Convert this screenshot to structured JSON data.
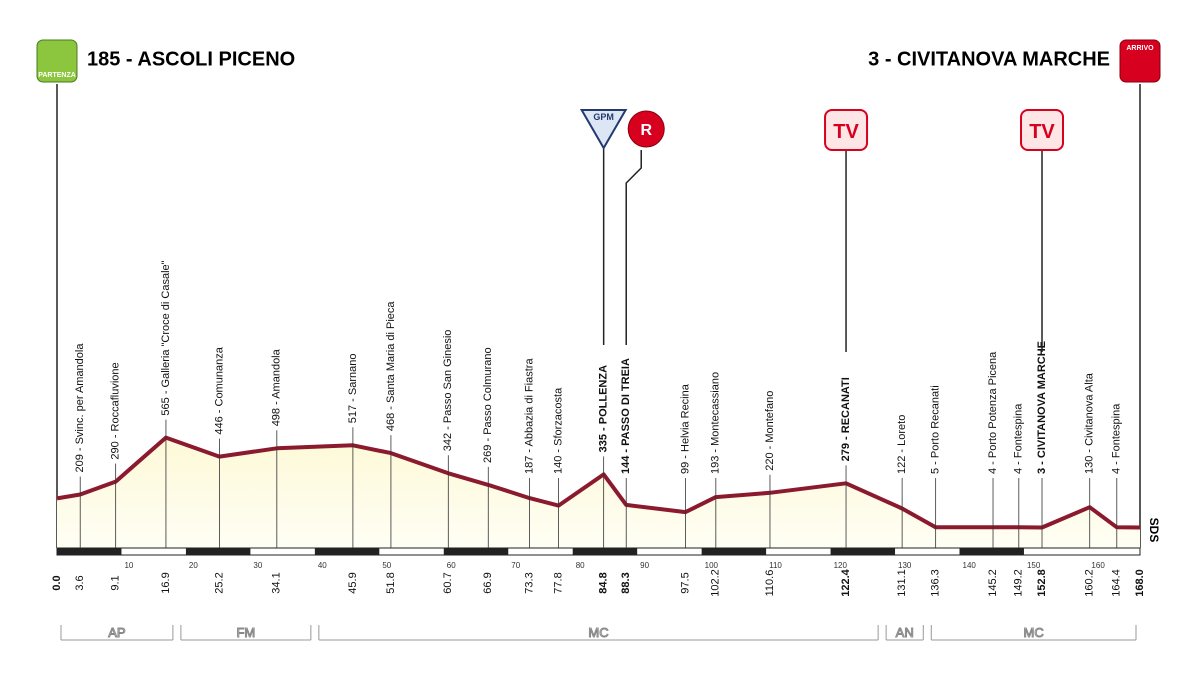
{
  "header": {
    "start": {
      "icon": "PARTENZA",
      "title": "185 - ASCOLI PICENO",
      "km": {
        "value": 0,
        "label": "0.0"
      },
      "altitude": 185
    },
    "finish": {
      "icon": "ARRIVO",
      "title": "3 - CIVITANOVA MARCHE",
      "km": {
        "value": 168,
        "label": "168.0"
      },
      "altitude": 3
    }
  },
  "waypoints": [
    {
      "label": "209 - Svinc. per Amandola",
      "km": {
        "value": 3.6,
        "label": "3.6"
      },
      "altitude": 209,
      "bold": false
    },
    {
      "label": "290 - Roccafluvione",
      "km": {
        "value": 9.1,
        "label": "9.1"
      },
      "altitude": 290,
      "bold": false
    },
    {
      "label": "565 - Galleria \"Croce di Casale\"",
      "km": {
        "value": 16.9,
        "label": "16.9"
      },
      "altitude": 565,
      "bold": false
    },
    {
      "label": "446 - Comunanza",
      "km": {
        "value": 25.2,
        "label": "25.2"
      },
      "altitude": 446,
      "bold": false
    },
    {
      "label": "498 - Amandola",
      "km": {
        "value": 34.1,
        "label": "34.1"
      },
      "altitude": 498,
      "bold": false
    },
    {
      "label": "517 - Sarnano",
      "km": {
        "value": 45.9,
        "label": "45.9"
      },
      "altitude": 517,
      "bold": false
    },
    {
      "label": "468 - Santa Maria di Pieca",
      "km": {
        "value": 51.8,
        "label": "51.8"
      },
      "altitude": 468,
      "bold": false
    },
    {
      "label": "342 - Passo San Ginesio",
      "km": {
        "value": 60.7,
        "label": "60.7"
      },
      "altitude": 342,
      "bold": false
    },
    {
      "label": "269 - Passo Colmurano",
      "km": {
        "value": 66.9,
        "label": "66.9"
      },
      "altitude": 269,
      "bold": false
    },
    {
      "label": "187 - Abbazia di Fiastra",
      "km": {
        "value": 73.3,
        "label": "73.3"
      },
      "altitude": 187,
      "bold": false
    },
    {
      "label": "140 - Sforzacosta",
      "km": {
        "value": 77.8,
        "label": "77.8"
      },
      "altitude": 140,
      "bold": false
    },
    {
      "label": "335 - POLLENZA",
      "km": {
        "value": 84.8,
        "label": "84.8"
      },
      "altitude": 335,
      "bold": true
    },
    {
      "label": "144 - PASSO DI TREIA",
      "km": {
        "value": 88.3,
        "label": "88.3"
      },
      "altitude": 144,
      "bold": true
    },
    {
      "label": "99 - Helvia Recina",
      "km": {
        "value": 97.5,
        "label": "97.5"
      },
      "altitude": 99,
      "bold": false
    },
    {
      "label": "193 - Montecassiano",
      "km": {
        "value": 102.2,
        "label": "102.2"
      },
      "altitude": 193,
      "bold": false
    },
    {
      "label": "220 - Montefano",
      "km": {
        "value": 110.6,
        "label": "110.6"
      },
      "altitude": 220,
      "bold": false
    },
    {
      "label": "279 - RECANATI",
      "km": {
        "value": 122.4,
        "label": "122.4"
      },
      "altitude": 279,
      "bold": true
    },
    {
      "label": "122 - Loreto",
      "km": {
        "value": 131.1,
        "label": "131.1"
      },
      "altitude": 122,
      "bold": false
    },
    {
      "label": "5 - Porto Recanati",
      "km": {
        "value": 136.3,
        "label": "136.3"
      },
      "altitude": 5,
      "bold": false
    },
    {
      "label": "4 - Porto Potenza Picena",
      "km": {
        "value": 145.2,
        "label": "145.2"
      },
      "altitude": 4,
      "bold": false
    },
    {
      "label": "4 - Fontespina",
      "km": {
        "value": 149.2,
        "label": "149.2"
      },
      "altitude": 4,
      "bold": false
    },
    {
      "label": "3 - CIVITANOVA MARCHE",
      "km": {
        "value": 152.8,
        "label": "152.8"
      },
      "altitude": 3,
      "bold": true
    },
    {
      "label": "130 - Civitanova Alta",
      "km": {
        "value": 160.2,
        "label": "160.2"
      },
      "altitude": 130,
      "bold": false
    },
    {
      "label": "4 - Fontespina",
      "km": {
        "value": 164.4,
        "label": "164.4"
      },
      "altitude": 4,
      "bold": false
    }
  ],
  "scale_ticks": [
    10,
    20,
    30,
    40,
    50,
    60,
    70,
    80,
    90,
    100,
    110,
    120,
    130,
    140,
    150,
    160
  ],
  "markers": [
    {
      "label": "GPM",
      "km": 84.8
    },
    {
      "label": "R",
      "km": 88.3
    },
    {
      "label": "TV",
      "km": 122.4
    },
    {
      "label": "TV",
      "km": 152.8
    }
  ],
  "end_note": "SDS",
  "regions": [
    {
      "label": "AP",
      "from": 0,
      "to": 18.6
    },
    {
      "label": "FM",
      "from": 18.6,
      "to": 40
    },
    {
      "label": "MC",
      "from": 40,
      "to": 128
    },
    {
      "label": "AN",
      "from": 128,
      "to": 135
    },
    {
      "label": "MC",
      "from": 135,
      "to": 168
    }
  ]
}
